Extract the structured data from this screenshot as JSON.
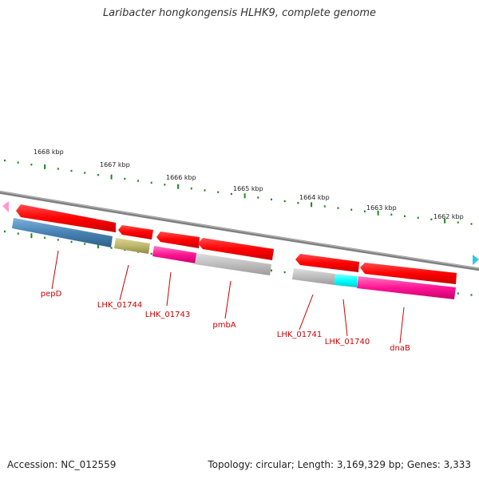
{
  "title": "Laribacter hongkongensis HLHK9, complete genome",
  "footer": {
    "accession": "Accession: NC_012559",
    "summary": "Topology: circular; Length: 3,169,329 bp; Genes: 3,333"
  },
  "ruler": {
    "labels": [
      "1668 kbp",
      "1667 kbp",
      "1666 kbp",
      "1665 kbp",
      "1664 kbp",
      "1663 kbp",
      "1662 kbp"
    ]
  },
  "genes": [
    {
      "label": "pepD",
      "color": "#4682b4"
    },
    {
      "label": "LHK_01744",
      "color": "#bdb76b"
    },
    {
      "label": "LHK_01743",
      "color": "#ff1493"
    },
    {
      "label": "pmbA",
      "color": "#bebebe"
    },
    {
      "label": "LHK_01741",
      "color": "#bebebe"
    },
    {
      "label": "LHK_01740",
      "color": "#00ffff"
    },
    {
      "label": "dnaB",
      "color": "#ff1493"
    }
  ],
  "cds_color": "#ff0000",
  "backbone_color": "#808080"
}
